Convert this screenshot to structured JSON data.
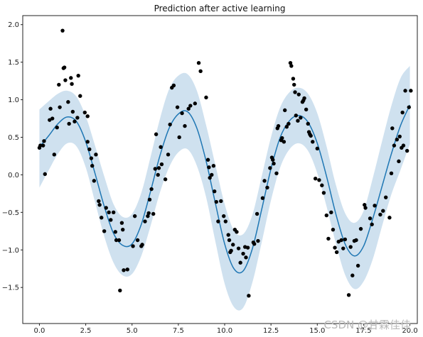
{
  "chart_data": {
    "type": "line",
    "title": "Prediction after active learning",
    "xlabel": "",
    "ylabel": "",
    "xlim": [
      -0.9,
      20.4
    ],
    "ylim": [
      -1.98,
      2.12
    ],
    "xticks": [
      0.0,
      2.5,
      5.0,
      7.5,
      10.0,
      12.5,
      15.0,
      17.5,
      20.0
    ],
    "xtick_labels": [
      "0.0",
      "2.5",
      "5.0",
      "7.5",
      "10.0",
      "12.5",
      "15.0",
      "17.5",
      "20.0"
    ],
    "yticks": [
      -1.5,
      -1.0,
      -0.5,
      0.0,
      0.5,
      1.0,
      1.5,
      2.0
    ],
    "ytick_labels": [
      "−1.5",
      "−1.0",
      "−0.5",
      "0.0",
      "0.5",
      "1.0",
      "1.5",
      "2.0"
    ],
    "grid": false,
    "colors": {
      "mean_line": "#1f77b4",
      "band": "#cfe1ef",
      "points": "#000000",
      "axes": "#222222",
      "watermark": "#b8b8b8"
    },
    "series": [
      {
        "kind": "mean-line",
        "x": [
          0.0,
          0.5,
          1.0,
          1.5,
          2.0,
          2.5,
          3.0,
          3.5,
          4.0,
          4.5,
          5.0,
          5.5,
          6.0,
          6.5,
          7.0,
          7.5,
          8.0,
          8.5,
          9.0,
          9.5,
          10.0,
          10.5,
          11.0,
          11.5,
          12.0,
          12.5,
          13.0,
          13.5,
          14.0,
          14.5,
          15.0,
          15.5,
          16.0,
          16.5,
          17.0,
          17.5,
          18.0,
          18.5,
          19.0,
          19.5,
          20.0
        ],
        "y": [
          0.37,
          0.52,
          0.68,
          0.77,
          0.71,
          0.44,
          0.02,
          -0.42,
          -0.78,
          -0.94,
          -0.92,
          -0.66,
          -0.22,
          0.25,
          0.62,
          0.81,
          0.84,
          0.62,
          0.18,
          -0.38,
          -0.92,
          -1.25,
          -1.28,
          -0.98,
          -0.46,
          0.08,
          0.5,
          0.72,
          0.79,
          0.7,
          0.42,
          -0.02,
          -0.52,
          -0.92,
          -1.08,
          -0.95,
          -0.58,
          -0.15,
          0.28,
          0.66,
          0.93
        ]
      },
      {
        "kind": "confidence-band",
        "x": [
          0.0,
          0.5,
          1.0,
          1.5,
          2.0,
          2.5,
          3.0,
          3.5,
          4.0,
          4.5,
          5.0,
          5.5,
          6.0,
          6.5,
          7.0,
          7.5,
          8.0,
          8.5,
          9.0,
          9.5,
          10.0,
          10.5,
          11.0,
          11.5,
          12.0,
          12.5,
          13.0,
          13.5,
          14.0,
          14.5,
          15.0,
          15.5,
          16.0,
          16.5,
          17.0,
          17.5,
          18.0,
          18.5,
          19.0,
          19.5,
          20.0
        ],
        "upper": [
          0.87,
          0.98,
          1.08,
          1.12,
          1.04,
          0.78,
          0.39,
          -0.02,
          -0.39,
          -0.56,
          -0.52,
          -0.24,
          0.24,
          0.74,
          1.14,
          1.32,
          1.34,
          1.12,
          0.66,
          0.13,
          -0.39,
          -0.74,
          -0.79,
          -0.53,
          -0.02,
          0.5,
          0.9,
          1.1,
          1.16,
          1.08,
          0.82,
          0.38,
          -0.13,
          -0.51,
          -0.64,
          -0.48,
          -0.04,
          0.45,
          0.92,
          1.29,
          1.45
        ],
        "lower": [
          -0.17,
          0.06,
          0.28,
          0.42,
          0.38,
          0.1,
          -0.36,
          -0.82,
          -1.17,
          -1.34,
          -1.32,
          -1.08,
          -0.68,
          -0.24,
          0.1,
          0.3,
          0.34,
          0.12,
          -0.3,
          -0.89,
          -1.45,
          -1.76,
          -1.77,
          -1.43,
          -0.9,
          -0.34,
          0.1,
          0.34,
          0.42,
          0.32,
          0.02,
          -0.42,
          -0.91,
          -1.33,
          -1.52,
          -1.42,
          -1.12,
          -0.68,
          -0.26,
          0.07,
          0.41
        ]
      },
      {
        "kind": "observations",
        "points": [
          [
            0.0,
            0.36
          ],
          [
            0.05,
            0.39
          ],
          [
            0.2,
            0.39
          ],
          [
            0.25,
            0.45
          ],
          [
            0.3,
            0.01
          ],
          [
            0.55,
            0.73
          ],
          [
            0.6,
            0.88
          ],
          [
            0.7,
            0.75
          ],
          [
            0.8,
            0.27
          ],
          [
            0.95,
            0.63
          ],
          [
            1.05,
            1.2
          ],
          [
            1.1,
            0.9
          ],
          [
            1.25,
            1.92
          ],
          [
            1.3,
            1.42
          ],
          [
            1.35,
            1.43
          ],
          [
            1.4,
            1.26
          ],
          [
            1.55,
            0.97
          ],
          [
            1.6,
            0.68
          ],
          [
            1.7,
            1.29
          ],
          [
            1.75,
            1.21
          ],
          [
            1.8,
            0.84
          ],
          [
            1.9,
            0.71
          ],
          [
            2.1,
            1.32
          ],
          [
            2.05,
            0.76
          ],
          [
            2.2,
            1.05
          ],
          [
            2.45,
            0.83
          ],
          [
            2.6,
            0.78
          ],
          [
            2.6,
            0.44
          ],
          [
            2.7,
            0.34
          ],
          [
            2.8,
            0.22
          ],
          [
            2.85,
            0.12
          ],
          [
            2.95,
            -0.08
          ],
          [
            3.05,
            0.27
          ],
          [
            3.2,
            -0.35
          ],
          [
            3.25,
            -0.4
          ],
          [
            3.35,
            -0.57
          ],
          [
            3.5,
            -0.75
          ],
          [
            3.6,
            -0.44
          ],
          [
            3.75,
            -0.5
          ],
          [
            3.85,
            -0.6
          ],
          [
            4.0,
            -0.5
          ],
          [
            4.1,
            -0.76
          ],
          [
            4.15,
            -0.87
          ],
          [
            4.3,
            -0.87
          ],
          [
            4.35,
            -1.54
          ],
          [
            4.45,
            -0.64
          ],
          [
            4.5,
            -0.73
          ],
          [
            4.55,
            -1.27
          ],
          [
            4.75,
            -1.26
          ],
          [
            5.05,
            -0.95
          ],
          [
            5.15,
            -0.55
          ],
          [
            5.3,
            -0.87
          ],
          [
            5.5,
            -0.95
          ],
          [
            5.55,
            -0.93
          ],
          [
            5.7,
            -0.62
          ],
          [
            5.85,
            -0.55
          ],
          [
            5.9,
            -0.51
          ],
          [
            5.95,
            -0.33
          ],
          [
            6.05,
            -0.19
          ],
          [
            6.15,
            -0.52
          ],
          [
            6.25,
            0.08
          ],
          [
            6.3,
            0.54
          ],
          [
            6.4,
            0.0
          ],
          [
            6.45,
            0.09
          ],
          [
            6.55,
            0.37
          ],
          [
            6.6,
            0.14
          ],
          [
            6.8,
            -0.06
          ],
          [
            6.95,
            0.27
          ],
          [
            7.05,
            0.67
          ],
          [
            7.15,
            1.16
          ],
          [
            7.25,
            1.19
          ],
          [
            7.45,
            0.9
          ],
          [
            7.55,
            0.5
          ],
          [
            7.7,
            0.82
          ],
          [
            7.85,
            0.65
          ],
          [
            8.05,
            0.88
          ],
          [
            8.15,
            0.92
          ],
          [
            8.4,
            0.95
          ],
          [
            8.6,
            1.49
          ],
          [
            8.7,
            1.38
          ],
          [
            9.0,
            1.03
          ],
          [
            9.1,
            0.2
          ],
          [
            9.15,
            0.1
          ],
          [
            9.2,
            -0.04
          ],
          [
            9.3,
            0.0
          ],
          [
            9.4,
            0.12
          ],
          [
            9.45,
            -0.22
          ],
          [
            9.55,
            -0.36
          ],
          [
            9.65,
            -0.62
          ],
          [
            9.8,
            -0.35
          ],
          [
            9.95,
            -0.55
          ],
          [
            10.05,
            -0.62
          ],
          [
            10.2,
            -0.8
          ],
          [
            10.25,
            -0.87
          ],
          [
            10.3,
            -1.03
          ],
          [
            10.35,
            -1.01
          ],
          [
            10.45,
            -0.93
          ],
          [
            10.55,
            -0.73
          ],
          [
            10.65,
            -0.76
          ],
          [
            10.75,
            -0.98
          ],
          [
            10.85,
            -1.17
          ],
          [
            11.0,
            -1.05
          ],
          [
            11.1,
            -0.96
          ],
          [
            11.15,
            -1.1
          ],
          [
            11.25,
            -0.97
          ],
          [
            11.3,
            -1.61
          ],
          [
            11.55,
            -0.9
          ],
          [
            11.6,
            -0.92
          ],
          [
            11.75,
            -0.52
          ],
          [
            11.8,
            -0.88
          ],
          [
            12.05,
            -0.31
          ],
          [
            12.15,
            -0.08
          ],
          [
            12.3,
            -0.17
          ],
          [
            12.45,
            0.09
          ],
          [
            12.55,
            0.23
          ],
          [
            12.6,
            0.2
          ],
          [
            12.65,
            0.15
          ],
          [
            12.8,
            0.02
          ],
          [
            12.85,
            0.62
          ],
          [
            12.9,
            0.65
          ],
          [
            13.05,
            0.46
          ],
          [
            13.1,
            0.49
          ],
          [
            13.2,
            0.44
          ],
          [
            13.25,
            0.86
          ],
          [
            13.35,
            0.64
          ],
          [
            13.45,
            0.68
          ],
          [
            13.55,
            1.49
          ],
          [
            13.6,
            1.45
          ],
          [
            13.7,
            1.28
          ],
          [
            13.75,
            1.2
          ],
          [
            13.8,
            1.1
          ],
          [
            13.85,
            0.79
          ],
          [
            13.95,
            0.72
          ],
          [
            14.0,
            1.07
          ],
          [
            14.1,
            0.76
          ],
          [
            14.2,
            0.97
          ],
          [
            14.25,
            0.99
          ],
          [
            14.3,
            1.02
          ],
          [
            14.4,
            0.87
          ],
          [
            14.5,
            0.68
          ],
          [
            14.55,
            0.57
          ],
          [
            14.6,
            0.54
          ],
          [
            14.65,
            0.52
          ],
          [
            14.75,
            0.44
          ],
          [
            14.9,
            -0.05
          ],
          [
            15.0,
            0.35
          ],
          [
            15.1,
            -0.07
          ],
          [
            15.25,
            -0.14
          ],
          [
            15.35,
            -0.24
          ],
          [
            15.5,
            -0.54
          ],
          [
            15.6,
            -0.85
          ],
          [
            15.75,
            -0.5
          ],
          [
            15.85,
            -0.73
          ],
          [
            15.95,
            -0.97
          ],
          [
            16.05,
            -1.03
          ],
          [
            16.15,
            -0.89
          ],
          [
            16.3,
            -0.87
          ],
          [
            16.4,
            -0.98
          ],
          [
            16.5,
            -0.86
          ],
          [
            16.7,
            -1.6
          ],
          [
            16.8,
            -0.96
          ],
          [
            16.9,
            -1.34
          ],
          [
            17.0,
            -0.88
          ],
          [
            17.1,
            -0.87
          ],
          [
            17.2,
            -1.21
          ],
          [
            17.35,
            -0.72
          ],
          [
            17.55,
            -0.4
          ],
          [
            17.6,
            -0.44
          ],
          [
            17.85,
            -0.58
          ],
          [
            17.95,
            -0.66
          ],
          [
            18.1,
            -0.41
          ],
          [
            18.4,
            -0.53
          ],
          [
            18.55,
            -0.48
          ],
          [
            18.7,
            -0.3
          ],
          [
            18.9,
            -0.57
          ],
          [
            19.0,
            0.02
          ],
          [
            19.05,
            0.62
          ],
          [
            19.15,
            0.39
          ],
          [
            19.3,
            0.47
          ],
          [
            19.4,
            0.18
          ],
          [
            19.45,
            0.51
          ],
          [
            19.55,
            0.36
          ],
          [
            19.6,
            0.83
          ],
          [
            19.65,
            0.39
          ],
          [
            19.75,
            1.12
          ],
          [
            19.85,
            0.32
          ],
          [
            19.95,
            0.9
          ],
          [
            20.05,
            1.12
          ]
        ]
      }
    ]
  },
  "watermark": "CSDN @甘霖佳佳"
}
